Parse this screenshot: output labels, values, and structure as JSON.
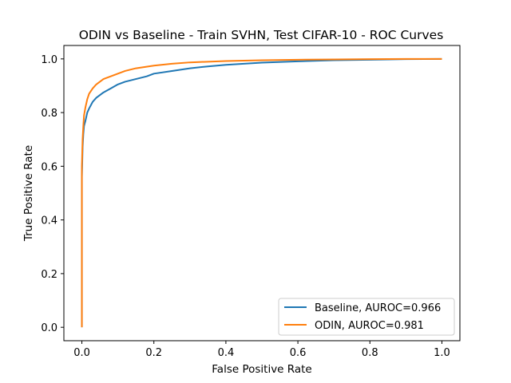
{
  "chart_data": {
    "type": "line",
    "title": "ODIN vs Baseline - Train SVHN, Test CIFAR-10 - ROC Curves",
    "xlabel": "False Positive Rate",
    "ylabel": "True Positive Rate",
    "xlim": [
      -0.05,
      1.05
    ],
    "ylim": [
      -0.05,
      1.05
    ],
    "xticks": [
      "0.0",
      "0.2",
      "0.4",
      "0.6",
      "0.8",
      "1.0"
    ],
    "yticks": [
      "0.0",
      "0.2",
      "0.4",
      "0.6",
      "0.8",
      "1.0"
    ],
    "grid": false,
    "legend_position": "lower-right",
    "series": [
      {
        "name": "Baseline, AUROC=0.966",
        "color": "#1f77b4",
        "x": [
          0.0,
          0.0,
          0.002,
          0.004,
          0.006,
          0.01,
          0.015,
          0.02,
          0.03,
          0.04,
          0.05,
          0.06,
          0.08,
          0.1,
          0.12,
          0.15,
          0.18,
          0.2,
          0.25,
          0.3,
          0.35,
          0.4,
          0.5,
          0.6,
          0.7,
          0.8,
          0.9,
          1.0
        ],
        "y": [
          0.0,
          0.56,
          0.67,
          0.72,
          0.75,
          0.77,
          0.8,
          0.815,
          0.84,
          0.855,
          0.865,
          0.875,
          0.89,
          0.905,
          0.915,
          0.925,
          0.935,
          0.945,
          0.955,
          0.965,
          0.972,
          0.978,
          0.986,
          0.991,
          0.995,
          0.997,
          0.999,
          1.0
        ]
      },
      {
        "name": "ODIN, AUROC=0.981",
        "color": "#ff7f0e",
        "x": [
          0.0,
          0.0,
          0.002,
          0.004,
          0.006,
          0.01,
          0.015,
          0.02,
          0.03,
          0.04,
          0.05,
          0.06,
          0.08,
          0.1,
          0.12,
          0.15,
          0.2,
          0.25,
          0.3,
          0.4,
          0.5,
          0.6,
          0.7,
          0.8,
          0.9,
          1.0
        ],
        "y": [
          0.0,
          0.6,
          0.7,
          0.75,
          0.79,
          0.82,
          0.85,
          0.87,
          0.89,
          0.905,
          0.915,
          0.925,
          0.935,
          0.945,
          0.955,
          0.965,
          0.975,
          0.982,
          0.987,
          0.992,
          0.995,
          0.997,
          0.998,
          0.999,
          1.0,
          1.0
        ]
      }
    ]
  }
}
